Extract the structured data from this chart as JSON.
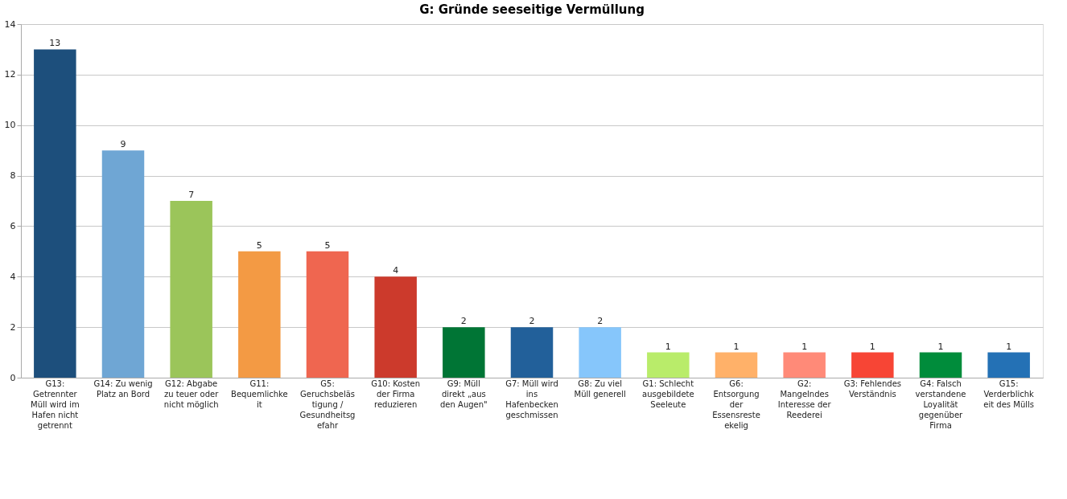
{
  "chart_data": {
    "type": "bar",
    "title": "G: Gründe seeseitige Vermüllung",
    "categories": [
      "G13: Getrennter Müll wird im Hafen nicht getrennt",
      "G14: Zu wenig Platz an Bord",
      "G12: Abgabe zu teuer oder nicht möglich",
      "G11: Bequemlichkeit",
      "G5: Geruchsbelästigung / Gesundheitsgefahr",
      "G10: Kosten der Firma reduzieren",
      "G9: Müll direkt „aus den Augen\"",
      "G7: Müll wird ins Hafenbecken geschmissen",
      "G8: Zu viel Müll generell",
      "G1: Schlecht ausgebildete Seeleute",
      "G6: Entsorgung der Essensreste ekelig",
      "G2: Mangelndes Interesse der Reederei",
      "G3: Fehlendes Verständnis",
      "G4: Falsch verstandene Loyalität gegenüber Firma",
      "G15: Verderblichkeit des Mülls"
    ],
    "values": [
      13,
      9,
      7,
      5,
      5,
      4,
      2,
      2,
      2,
      1,
      1,
      1,
      1,
      1,
      1
    ],
    "colors": [
      "#1d4f7c",
      "#6fa6d4",
      "#9bc55a",
      "#f39a44",
      "#ef6650",
      "#cc3a2c",
      "#007535",
      "#22609a",
      "#86c6fb",
      "#b9ec6a",
      "#ffb169",
      "#ff8a78",
      "#f74535",
      "#008c3b",
      "#2471b5"
    ],
    "ylim": [
      0,
      14
    ],
    "yticks": [
      0,
      2,
      4,
      6,
      8,
      10,
      12,
      14
    ],
    "grid": "y",
    "data_labels": true
  }
}
